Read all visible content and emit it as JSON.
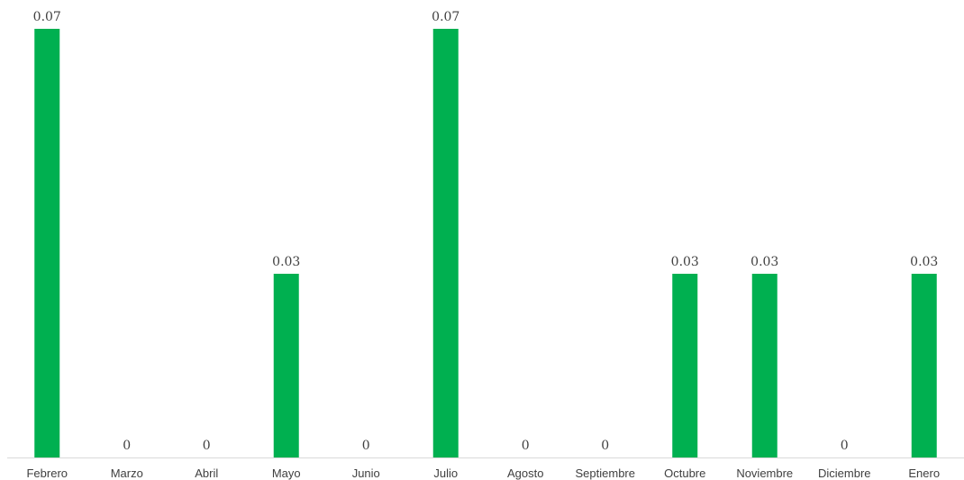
{
  "chart_data": {
    "type": "bar",
    "categories": [
      "Febrero",
      "Marzo",
      "Abril",
      "Mayo",
      "Junio",
      "Julio",
      "Agosto",
      "Septiembre",
      "Octubre",
      "Noviembre",
      "Diciembre",
      "Enero"
    ],
    "values": [
      0.07,
      0,
      0,
      0.03,
      0,
      0.07,
      0,
      0,
      0.03,
      0.03,
      0,
      0.03
    ],
    "value_labels": [
      "0.07",
      "0",
      "0",
      "0.03",
      "0",
      "0.07",
      "0",
      "0",
      "0.03",
      "0.03",
      "0",
      "0.03"
    ],
    "ylim": [
      0,
      0.07
    ],
    "grid": false,
    "legend": "none",
    "bar_color": "#00B050",
    "axis_color": "#D9D9D9",
    "text_color": "#404040"
  }
}
